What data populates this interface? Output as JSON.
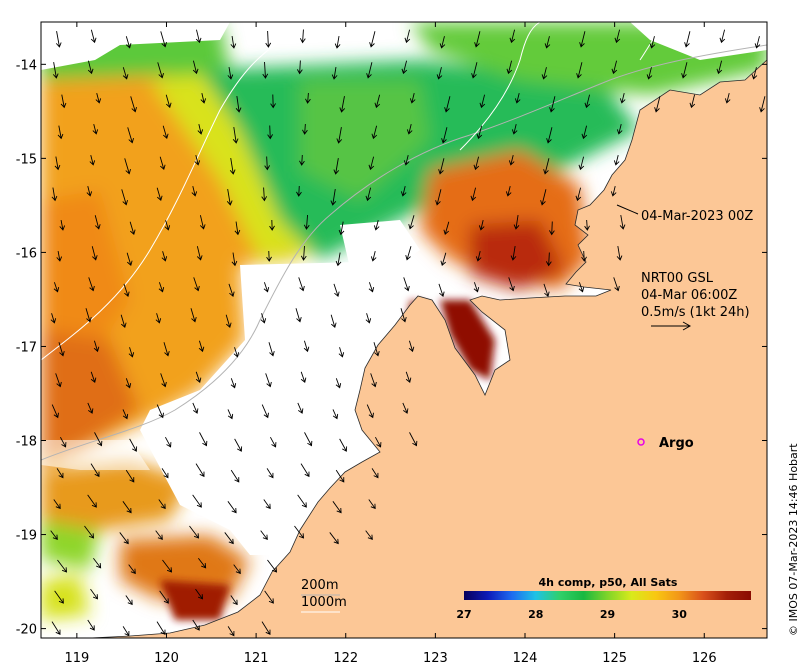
{
  "map": {
    "lon_range": [
      118.6,
      126.7
    ],
    "lat_range": [
      -20.1,
      -13.55
    ],
    "x_ticks": [
      "119",
      "120",
      "121",
      "122",
      "123",
      "124",
      "125",
      "126"
    ],
    "y_ticks": [
      "-14",
      "-15",
      "-16",
      "-17",
      "-18",
      "-19",
      "-20"
    ],
    "land_color": "#fcc796",
    "no_data_color": "#ffffff"
  },
  "annotations": {
    "timestamp": "04-Mar-2023 00Z",
    "current_source": "NRT00 GSL",
    "current_time": "04-Mar 06:00Z",
    "scale_text": "0.5m/s (1kt 24h)",
    "argo_label": "Argo",
    "argo_position": [
      125.3,
      -18.0
    ],
    "contour_200": "200m",
    "contour_1000": "1000m"
  },
  "colorbar": {
    "title": "4h comp, p50, All Sats",
    "ticks": [
      "27",
      "28",
      "29",
      "30"
    ],
    "range": [
      27,
      31
    ],
    "colors": [
      "#08005a",
      "#0d1ab8",
      "#1f6bf0",
      "#1fc2e5",
      "#30d06b",
      "#19b841",
      "#7fd429",
      "#d8ea1c",
      "#f8c812",
      "#f29618",
      "#d9501b",
      "#a31f08",
      "#8a0c02"
    ]
  },
  "credit": "© IMOS 07-Mar-2023 14:46 Hobart"
}
